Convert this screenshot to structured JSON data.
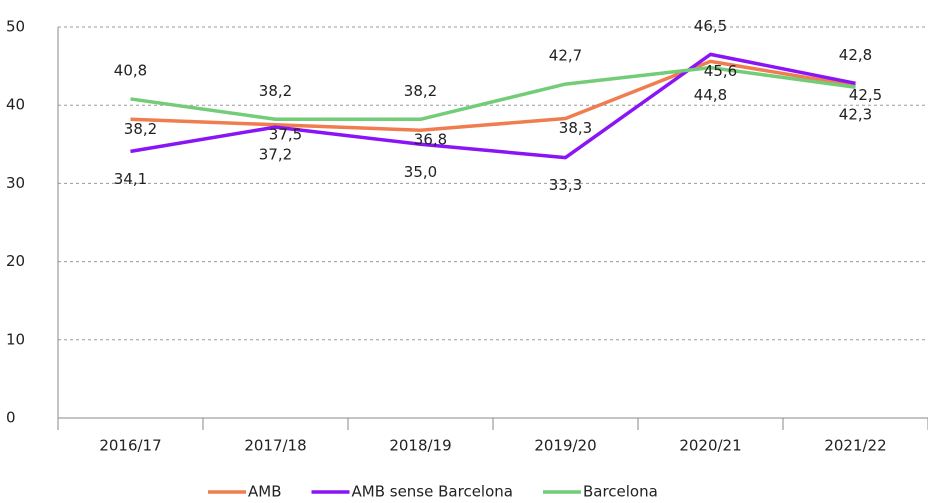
{
  "chart_data": {
    "type": "line",
    "categories": [
      "2016/17",
      "2017/18",
      "2018/19",
      "2019/20",
      "2020/21",
      "2021/22"
    ],
    "series": [
      {
        "name": "AMB",
        "color": "#f07d4f",
        "values": [
          38.2,
          37.5,
          36.8,
          38.3,
          45.6,
          42.5
        ],
        "value_labels": [
          "38,2",
          "37,5",
          "36,8",
          "38,3",
          "45,6",
          "42,5"
        ]
      },
      {
        "name": "AMB sense Barcelona",
        "color": "#8a14f5",
        "values": [
          34.1,
          37.2,
          35,
          33.3,
          46.5,
          42.8
        ],
        "value_labels": [
          "34,1",
          "37,2",
          "35,0",
          "33,3",
          "46,5",
          "42,8"
        ]
      },
      {
        "name": "Barcelona",
        "color": "#72cc78",
        "values": [
          40.8,
          38.2,
          38.2,
          42.7,
          44.8,
          42.3
        ],
        "value_labels": [
          "40,8",
          "38,2",
          "38,2",
          "42,7",
          "44,8",
          "42,3"
        ]
      }
    ],
    "ylim": [
      0,
      50
    ],
    "yticks": [
      0,
      10,
      20,
      30,
      40,
      50
    ],
    "grid": true,
    "legend": "bottom"
  }
}
